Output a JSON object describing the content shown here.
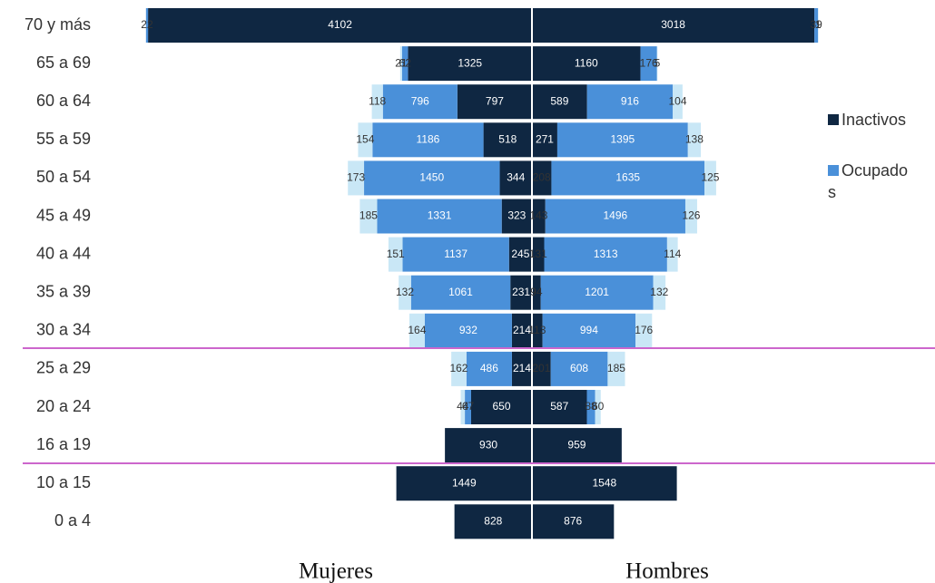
{
  "chart_data": {
    "type": "pyramid",
    "categories": [
      "70 y más",
      "65 a 69",
      "60 a 64",
      "55 a 59",
      "50 a 54",
      "45 a 49",
      "40 a 44",
      "35 a 39",
      "30 a 34",
      "25 a 29",
      "20 a 24",
      "16 a 19",
      "10 a 15",
      "0 a 4"
    ],
    "sides": [
      {
        "label": "Mujeres",
        "series": [
          {
            "name": "Inactivos",
            "color": "#0f2742",
            "values": [
              4102,
              1325,
              797,
              518,
              344,
              323,
              245,
              231,
              214,
              214,
              650,
              930,
              1449,
              828
            ]
          },
          {
            "name": "Ocupados",
            "color": "#4a90d9",
            "values": [
              22,
              62,
              796,
              1186,
              1450,
              1331,
              1137,
              1061,
              932,
              486,
              67,
              null,
              null,
              null
            ]
          },
          {
            "color": "#c9e7f6",
            "values": [
              null,
              21,
              118,
              154,
              173,
              185,
              151,
              132,
              164,
              162,
              44,
              null,
              null,
              null
            ]
          }
        ]
      },
      {
        "label": "Hombres",
        "series": [
          {
            "color": "#0f2742",
            "values": [
              3018,
              1160,
              589,
              271,
              208,
              143,
              131,
              94,
              113,
              201,
              587,
              959,
              1548,
              876
            ]
          },
          {
            "color": "#4a90d9",
            "values": [
              39,
              176,
              916,
              1395,
              1635,
              1496,
              1313,
              1201,
              994,
              608,
              88,
              null,
              null,
              null
            ]
          },
          {
            "color": "#c9e7f6",
            "values": [
              1,
              5,
              104,
              138,
              125,
              126,
              114,
              132,
              176,
              185,
              60,
              null,
              null,
              null
            ]
          }
        ]
      }
    ]
  }
}
